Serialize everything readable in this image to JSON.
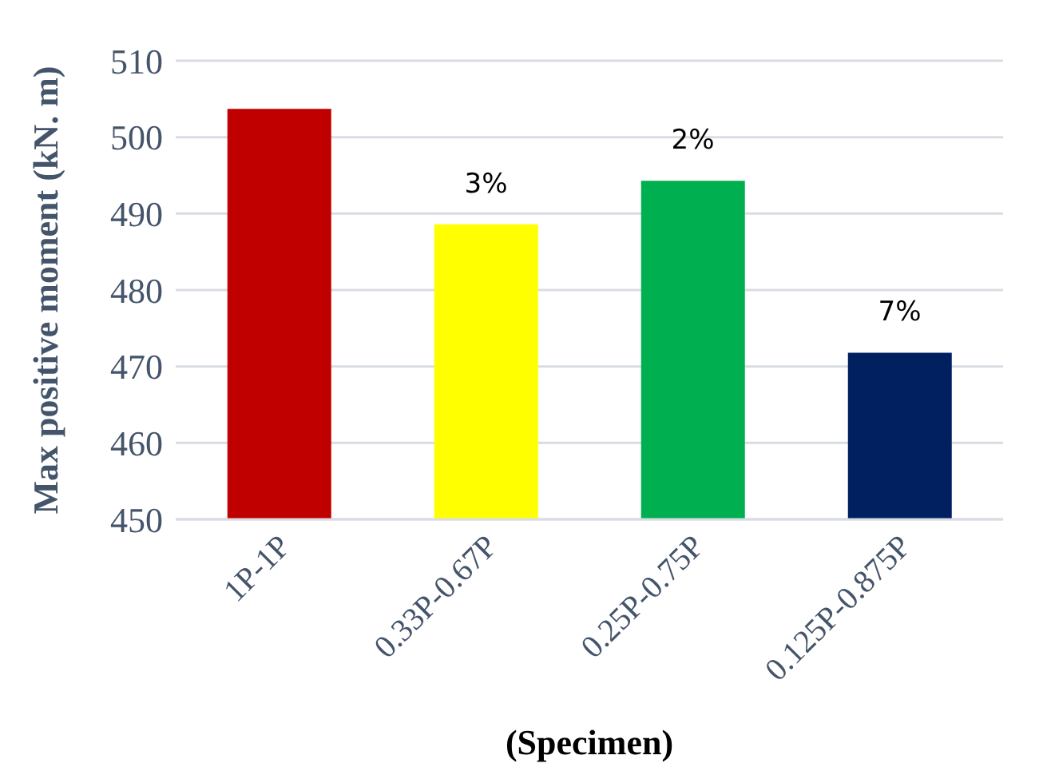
{
  "chart_data": {
    "type": "bar",
    "categories": [
      "1P-1P",
      "0.33P-0.67P",
      "0.25P-0.75P",
      "0.125P-0.875P"
    ],
    "values": [
      503.7,
      488.6,
      494.3,
      471.8
    ],
    "colors": [
      "#c00000",
      "#ffff00",
      "#00b050",
      "#002060"
    ],
    "xlabel": "(Specimen)",
    "ylabel": "Max positive moment (kN. m)",
    "ylim": [
      450,
      510
    ],
    "yticks": [
      450,
      460,
      470,
      480,
      490,
      500,
      510
    ],
    "grid": "y",
    "annotations": [
      {
        "text": "3%",
        "x": "0.33P-0.67P",
        "y": 488.6
      },
      {
        "text": "2%",
        "x": "0.25P-0.75P",
        "y": 494.3
      },
      {
        "text": "7%",
        "x": "0.125P-0.875P",
        "y": 471.8
      }
    ]
  }
}
